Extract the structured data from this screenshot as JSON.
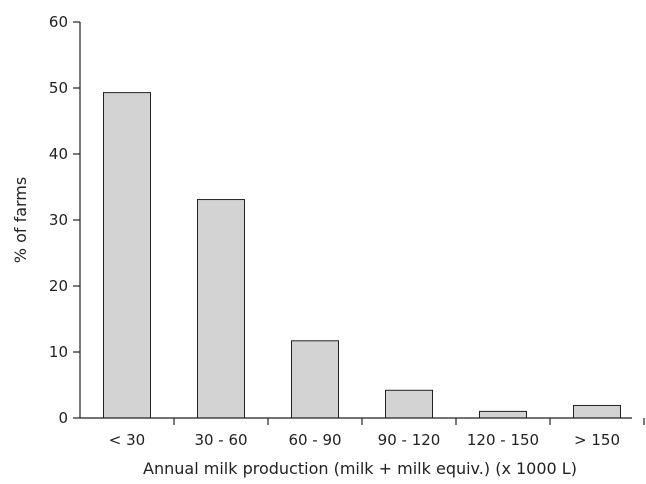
{
  "chart_data": {
    "type": "bar",
    "title": "",
    "xlabel": "Annual milk production (milk + milk equiv.) (x 1000 L)",
    "ylabel": "% of farms",
    "categories": [
      "< 30",
      "30 - 60",
      "60 - 90",
      "90 - 120",
      "120 - 150",
      "> 150"
    ],
    "values": [
      49.3,
      33.1,
      11.7,
      4.2,
      1.0,
      1.9
    ],
    "ylim": [
      0,
      60
    ],
    "yticks": [
      "0",
      "10",
      "20",
      "30",
      "40",
      "50",
      "60"
    ],
    "grid": false,
    "legend": "none",
    "bar_color": "#d3d3d3"
  }
}
